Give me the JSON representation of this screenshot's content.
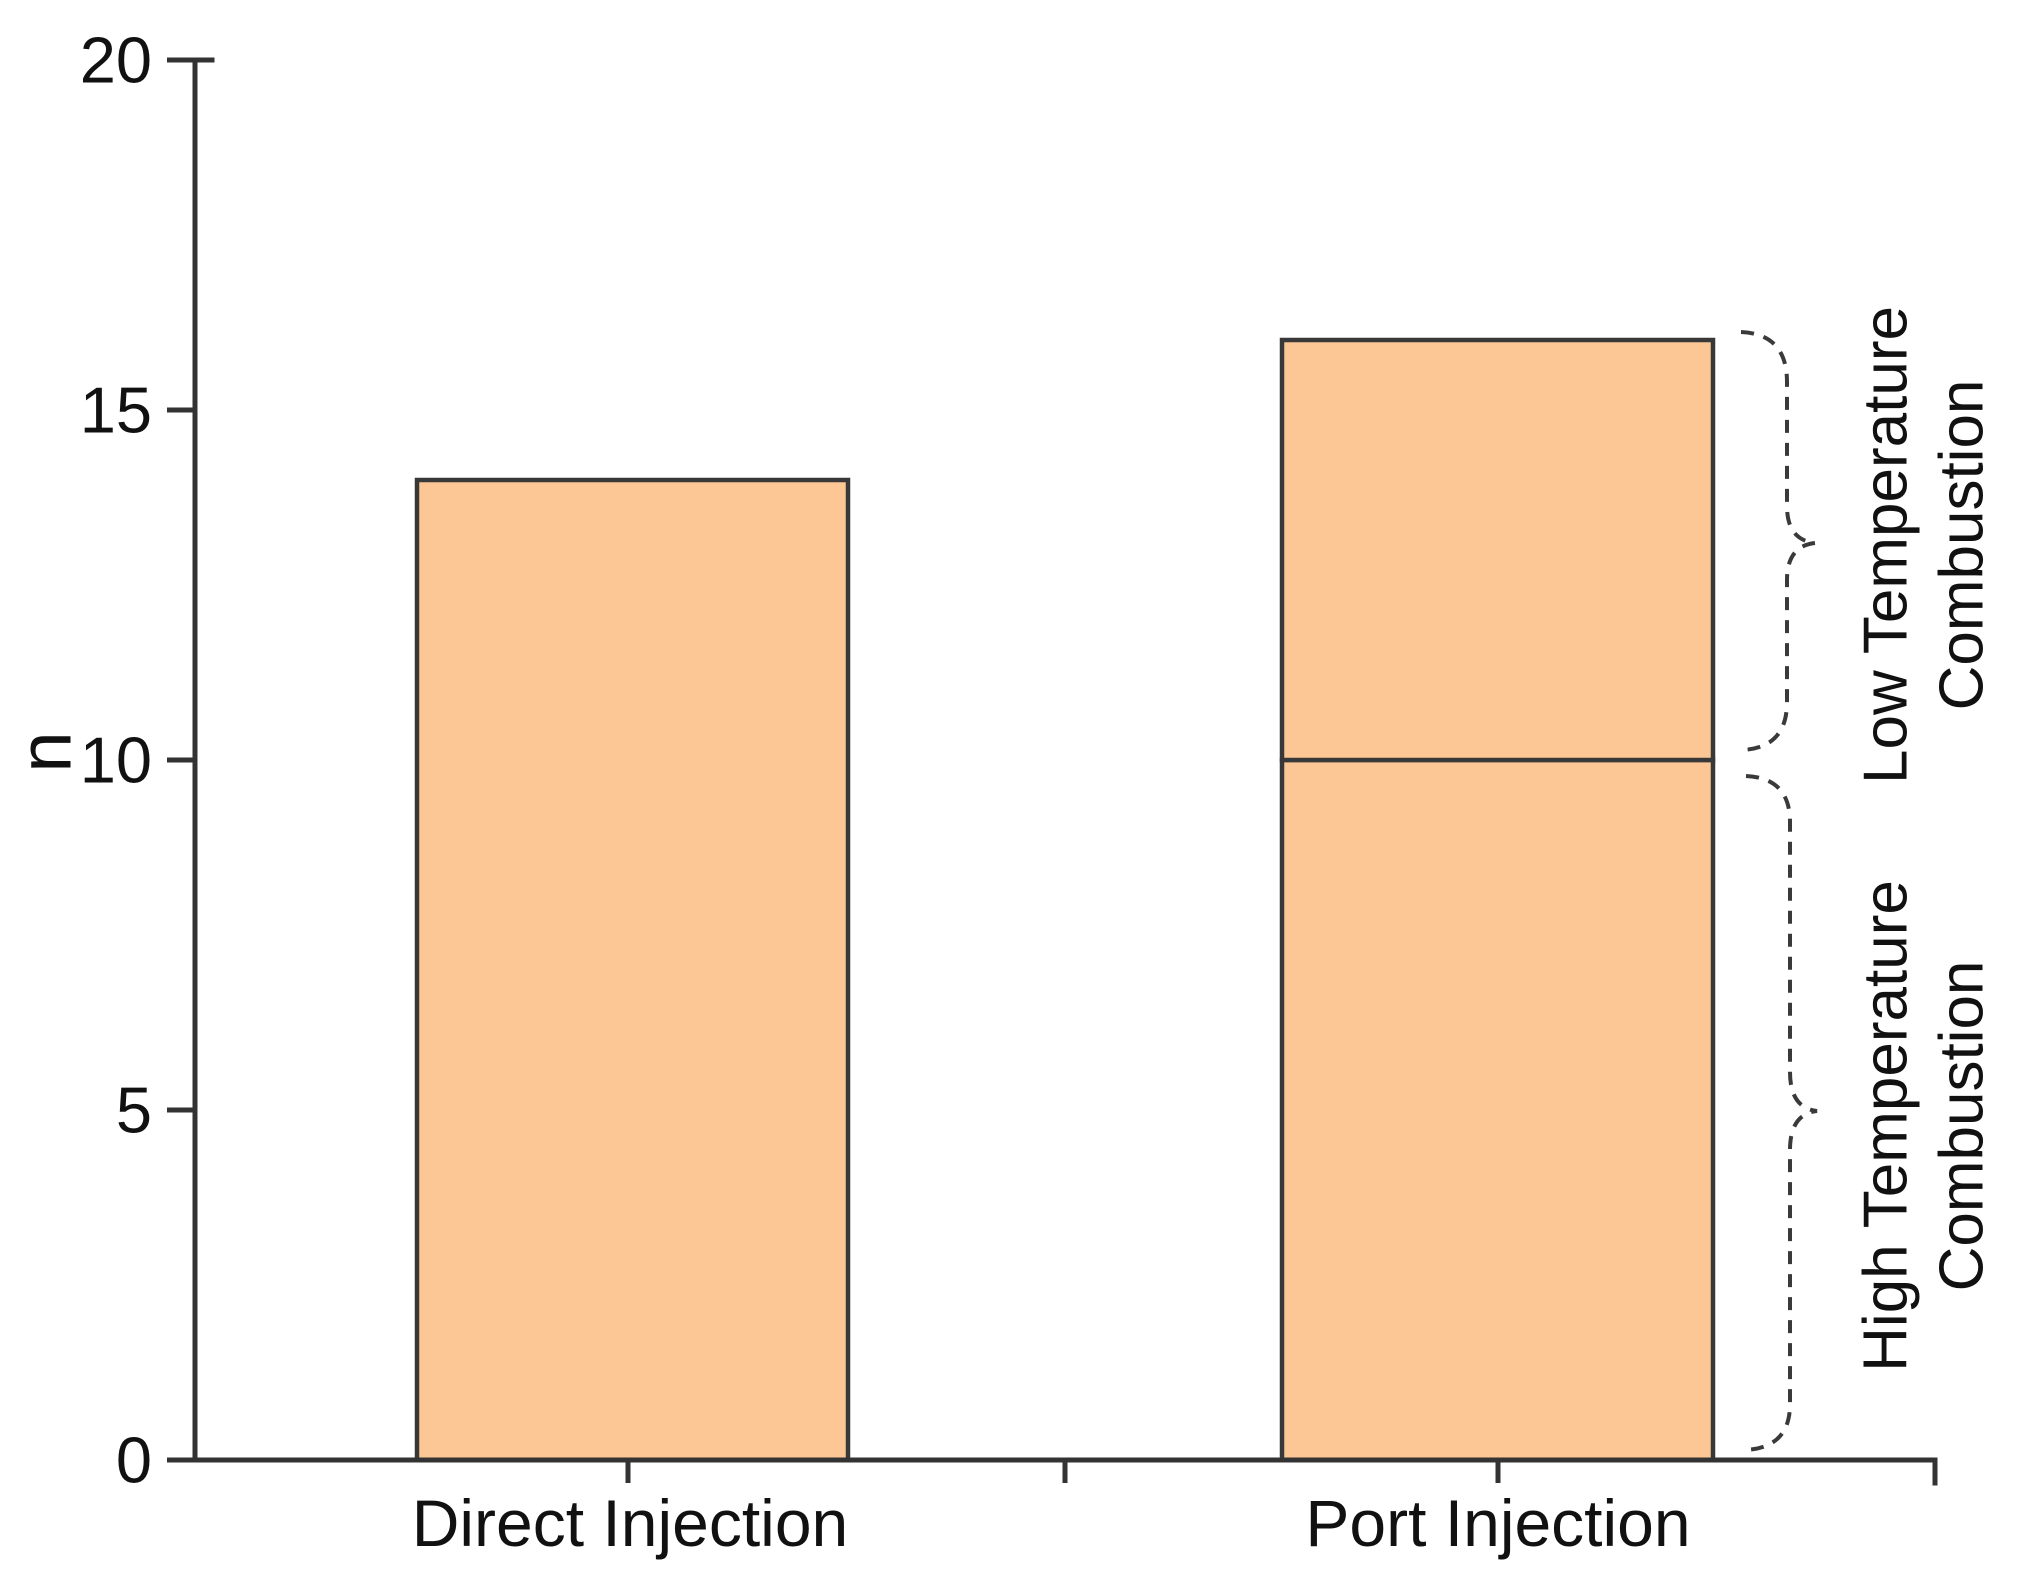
{
  "chart_data": {
    "type": "bar",
    "title": "",
    "xlabel": "",
    "ylabel": "n",
    "ylim": [
      0,
      20
    ],
    "yticks": [
      0,
      5,
      10,
      15,
      20
    ],
    "grid": false,
    "legend": "none",
    "categories": [
      "Direct Injection",
      "Port Injection"
    ],
    "bars": [
      {
        "category": "Direct Injection",
        "total": 14,
        "segments": [
          {
            "label": "",
            "value": 14
          }
        ]
      },
      {
        "category": "Port Injection",
        "total": 16,
        "segments": [
          {
            "label": "High Temperature Combustion",
            "value": 10
          },
          {
            "label": "Low Temperature Combustion",
            "value": 6
          }
        ]
      }
    ],
    "annotations": [
      {
        "target": "Port Injection",
        "value_range": [
          10,
          16
        ],
        "brace_style": "dashed",
        "lines": [
          "Low Temperature",
          "Combustion"
        ]
      },
      {
        "target": "Port Injection",
        "value_range": [
          0,
          10
        ],
        "brace_style": "dashed",
        "lines": [
          "High Temperature",
          "Combustion"
        ]
      }
    ],
    "styles": {
      "bar_fill": "#fdc795",
      "bar_border": "#383838",
      "axis_color": "#333333",
      "text_color": "#111111",
      "brace_color": "#3a3a3a",
      "background": "#ffffff"
    }
  }
}
